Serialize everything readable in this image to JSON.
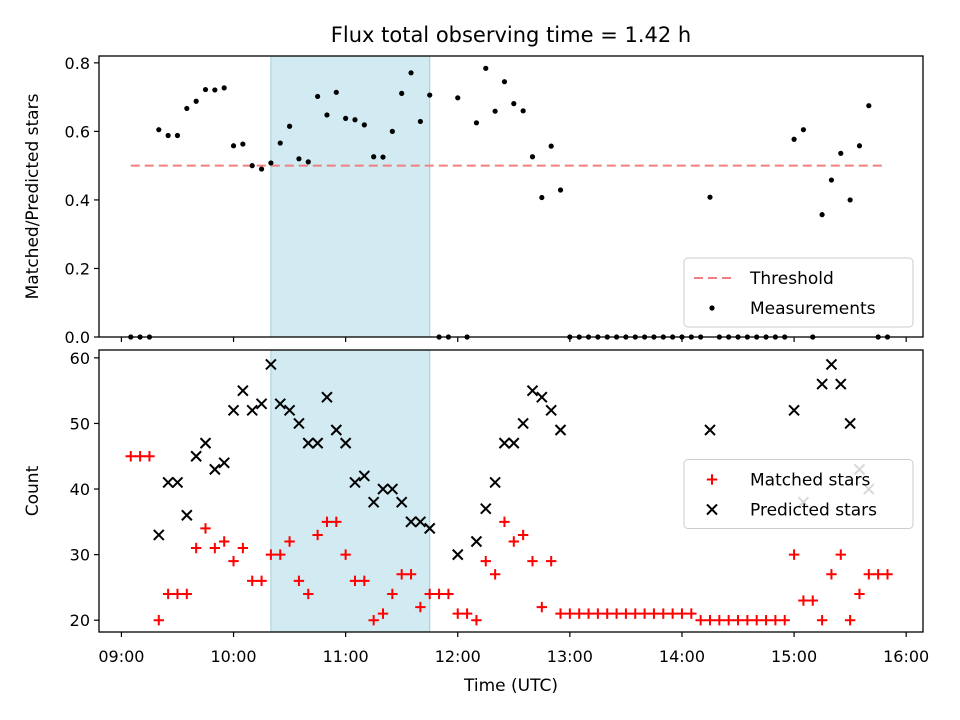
{
  "chart_data": {
    "title": "Flux total observing time = 1.42 h",
    "xlabel": "Time (UTC)",
    "x_range": [
      "08:48",
      "16:09"
    ],
    "x_ticks": [
      "09:00",
      "10:00",
      "11:00",
      "12:00",
      "13:00",
      "14:00",
      "15:00",
      "16:00"
    ],
    "highlight_span": {
      "start": "10:20",
      "end": "11:45",
      "color": "#add8e6"
    },
    "panels": [
      {
        "type": "scatter",
        "ylabel": "Matched/Predicted stars",
        "ylim": [
          0,
          0.82
        ],
        "yticks": [
          "0.0",
          "0.2",
          "0.4",
          "0.6",
          "0.8"
        ],
        "legend_position": "lower right",
        "threshold": {
          "name": "Threshold",
          "value": 0.5,
          "start": "09:05",
          "end": "15:49",
          "color": "#f08080"
        },
        "series": [
          {
            "name": "Measurements",
            "color": "#000000",
            "marker": "dot",
            "points": [
              [
                "09:05",
                0
              ],
              [
                "09:10",
                0
              ],
              [
                "09:15",
                0
              ],
              [
                "09:20",
                0.605
              ],
              [
                "09:25",
                0.588
              ],
              [
                "09:30",
                0.588
              ],
              [
                "09:35",
                0.667
              ],
              [
                "09:40",
                0.688
              ],
              [
                "09:45",
                0.722
              ],
              [
                "09:50",
                0.721
              ],
              [
                "09:55",
                0.727
              ],
              [
                "10:00",
                0.558
              ],
              [
                "10:05",
                0.563
              ],
              [
                "10:10",
                0.5
              ],
              [
                "10:15",
                0.49
              ],
              [
                "10:20",
                0.508
              ],
              [
                "10:25",
                0.566
              ],
              [
                "10:30",
                0.615
              ],
              [
                "10:35",
                0.52
              ],
              [
                "10:40",
                0.511
              ],
              [
                "10:45",
                0.702
              ],
              [
                "10:50",
                0.648
              ],
              [
                "10:55",
                0.714
              ],
              [
                "11:00",
                0.638
              ],
              [
                "11:05",
                0.634
              ],
              [
                "11:10",
                0.619
              ],
              [
                "11:15",
                0.526
              ],
              [
                "11:20",
                0.525
              ],
              [
                "11:25",
                0.6
              ],
              [
                "11:30",
                0.711
              ],
              [
                "11:35",
                0.771
              ],
              [
                "11:40",
                0.629
              ],
              [
                "11:45",
                0.706
              ],
              [
                "11:50",
                0
              ],
              [
                "11:55",
                0
              ],
              [
                "12:00",
                0.698
              ],
              [
                "12:05",
                0
              ],
              [
                "12:10",
                0.625
              ],
              [
                "12:15",
                0.784
              ],
              [
                "12:20",
                0.659
              ],
              [
                "12:25",
                0.745
              ],
              [
                "12:30",
                0.681
              ],
              [
                "12:35",
                0.66
              ],
              [
                "12:40",
                0.526
              ],
              [
                "12:45",
                0.407
              ],
              [
                "12:50",
                0.557
              ],
              [
                "12:55",
                0.429
              ],
              [
                "13:00",
                0
              ],
              [
                "13:05",
                0
              ],
              [
                "13:10",
                0
              ],
              [
                "13:15",
                0
              ],
              [
                "13:20",
                0
              ],
              [
                "13:25",
                0
              ],
              [
                "13:30",
                0
              ],
              [
                "13:35",
                0
              ],
              [
                "13:40",
                0
              ],
              [
                "13:45",
                0
              ],
              [
                "13:50",
                0
              ],
              [
                "13:55",
                0
              ],
              [
                "14:00",
                0
              ],
              [
                "14:05",
                0
              ],
              [
                "14:10",
                0
              ],
              [
                "14:15",
                0.408
              ],
              [
                "14:20",
                0
              ],
              [
                "14:25",
                0
              ],
              [
                "14:30",
                0
              ],
              [
                "14:35",
                0
              ],
              [
                "14:40",
                0
              ],
              [
                "14:45",
                0
              ],
              [
                "14:50",
                0
              ],
              [
                "14:55",
                0
              ],
              [
                "15:00",
                0.577
              ],
              [
                "15:05",
                0.605
              ],
              [
                "15:10",
                0
              ],
              [
                "15:15",
                0.357
              ],
              [
                "15:20",
                0.458
              ],
              [
                "15:25",
                0.536
              ],
              [
                "15:30",
                0.4
              ],
              [
                "15:35",
                0.558
              ],
              [
                "15:40",
                0.675
              ],
              [
                "15:45",
                0
              ],
              [
                "15:50",
                0
              ]
            ]
          }
        ]
      },
      {
        "type": "scatter",
        "ylabel": "Count",
        "ylim": [
          18.2,
          61.2
        ],
        "yticks": [
          "20",
          "30",
          "40",
          "50",
          "60"
        ],
        "legend_position": "center right",
        "series": [
          {
            "name": "Matched stars",
            "color": "#ff0000",
            "marker": "plus",
            "points": [
              [
                "09:05",
                45
              ],
              [
                "09:10",
                45
              ],
              [
                "09:15",
                45
              ],
              [
                "09:20",
                20
              ],
              [
                "09:25",
                24
              ],
              [
                "09:30",
                24
              ],
              [
                "09:35",
                24
              ],
              [
                "09:40",
                31
              ],
              [
                "09:45",
                34
              ],
              [
                "09:50",
                31
              ],
              [
                "09:55",
                32
              ],
              [
                "10:00",
                29
              ],
              [
                "10:05",
                31
              ],
              [
                "10:10",
                26
              ],
              [
                "10:15",
                26
              ],
              [
                "10:20",
                30
              ],
              [
                "10:25",
                30
              ],
              [
                "10:30",
                32
              ],
              [
                "10:35",
                26
              ],
              [
                "10:40",
                24
              ],
              [
                "10:45",
                33
              ],
              [
                "10:50",
                35
              ],
              [
                "10:55",
                35
              ],
              [
                "11:00",
                30
              ],
              [
                "11:05",
                26
              ],
              [
                "11:10",
                26
              ],
              [
                "11:15",
                20
              ],
              [
                "11:20",
                21
              ],
              [
                "11:25",
                24
              ],
              [
                "11:30",
                27
              ],
              [
                "11:35",
                27
              ],
              [
                "11:40",
                22
              ],
              [
                "11:45",
                24
              ],
              [
                "11:50",
                24
              ],
              [
                "11:55",
                24
              ],
              [
                "12:00",
                21
              ],
              [
                "12:05",
                21
              ],
              [
                "12:10",
                20
              ],
              [
                "12:15",
                29
              ],
              [
                "12:20",
                27
              ],
              [
                "12:25",
                35
              ],
              [
                "12:30",
                32
              ],
              [
                "12:35",
                33
              ],
              [
                "12:40",
                29
              ],
              [
                "12:45",
                22
              ],
              [
                "12:50",
                29
              ],
              [
                "12:55",
                21
              ],
              [
                "13:00",
                21
              ],
              [
                "13:05",
                21
              ],
              [
                "13:10",
                21
              ],
              [
                "13:15",
                21
              ],
              [
                "13:20",
                21
              ],
              [
                "13:25",
                21
              ],
              [
                "13:30",
                21
              ],
              [
                "13:35",
                21
              ],
              [
                "13:40",
                21
              ],
              [
                "13:45",
                21
              ],
              [
                "13:50",
                21
              ],
              [
                "13:55",
                21
              ],
              [
                "14:00",
                21
              ],
              [
                "14:05",
                21
              ],
              [
                "14:10",
                20
              ],
              [
                "14:15",
                20
              ],
              [
                "14:20",
                20
              ],
              [
                "14:25",
                20
              ],
              [
                "14:30",
                20
              ],
              [
                "14:35",
                20
              ],
              [
                "14:40",
                20
              ],
              [
                "14:45",
                20
              ],
              [
                "14:50",
                20
              ],
              [
                "14:55",
                20
              ],
              [
                "15:00",
                30
              ],
              [
                "15:05",
                23
              ],
              [
                "15:10",
                23
              ],
              [
                "15:15",
                20
              ],
              [
                "15:20",
                27
              ],
              [
                "15:25",
                30
              ],
              [
                "15:30",
                20
              ],
              [
                "15:35",
                24
              ],
              [
                "15:40",
                27
              ],
              [
                "15:45",
                27
              ],
              [
                "15:50",
                27
              ]
            ]
          },
          {
            "name": "Predicted stars",
            "color": "#000000",
            "marker": "x",
            "points": [
              [
                "09:20",
                33
              ],
              [
                "09:25",
                41
              ],
              [
                "09:30",
                41
              ],
              [
                "09:35",
                36
              ],
              [
                "09:40",
                45
              ],
              [
                "09:45",
                47
              ],
              [
                "09:50",
                43
              ],
              [
                "09:55",
                44
              ],
              [
                "10:00",
                52
              ],
              [
                "10:05",
                55
              ],
              [
                "10:10",
                52
              ],
              [
                "10:15",
                53
              ],
              [
                "10:20",
                59
              ],
              [
                "10:25",
                53
              ],
              [
                "10:30",
                52
              ],
              [
                "10:35",
                50
              ],
              [
                "10:40",
                47
              ],
              [
                "10:45",
                47
              ],
              [
                "10:50",
                54
              ],
              [
                "10:55",
                49
              ],
              [
                "11:00",
                47
              ],
              [
                "11:05",
                41
              ],
              [
                "11:10",
                42
              ],
              [
                "11:15",
                38
              ],
              [
                "11:20",
                40
              ],
              [
                "11:25",
                40
              ],
              [
                "11:30",
                38
              ],
              [
                "11:35",
                35
              ],
              [
                "11:40",
                35
              ],
              [
                "11:45",
                34
              ],
              [
                "12:00",
                30
              ],
              [
                "12:10",
                32
              ],
              [
                "12:15",
                37
              ],
              [
                "12:20",
                41
              ],
              [
                "12:25",
                47
              ],
              [
                "12:30",
                47
              ],
              [
                "12:35",
                50
              ],
              [
                "12:40",
                55
              ],
              [
                "12:45",
                54
              ],
              [
                "12:50",
                52
              ],
              [
                "12:55",
                49
              ],
              [
                "14:15",
                49
              ],
              [
                "15:00",
                52
              ],
              [
                "15:05",
                38
              ],
              [
                "15:15",
                56
              ],
              [
                "15:20",
                59
              ],
              [
                "15:25",
                56
              ],
              [
                "15:30",
                50
              ],
              [
                "15:35",
                43
              ],
              [
                "15:40",
                40
              ]
            ]
          }
        ]
      }
    ]
  }
}
